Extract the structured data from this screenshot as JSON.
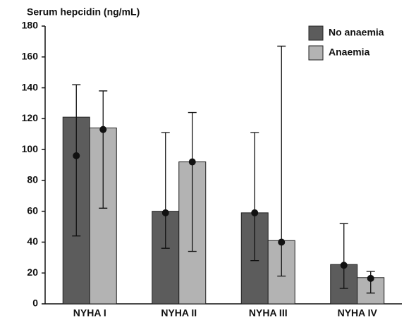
{
  "chart_data": {
    "type": "bar",
    "y_label": "Serum hepcidin (ng/mL)",
    "categories": [
      "NYHA I",
      "NYHA II",
      "NYHA III",
      "NYHA IV"
    ],
    "series": [
      {
        "name": "No anaemia",
        "color": "#5c5c5c",
        "values": [
          121,
          60,
          59,
          25.5
        ],
        "points": [
          96,
          59,
          59,
          25
        ],
        "lower": [
          44,
          36,
          28,
          10
        ],
        "upper": [
          142,
          111,
          111,
          52
        ]
      },
      {
        "name": "Anaemia",
        "color": "#b3b3b3",
        "values": [
          114,
          92,
          41,
          17
        ],
        "points": [
          113,
          92,
          40,
          16.5
        ],
        "lower": [
          62,
          34,
          18,
          7
        ],
        "upper": [
          138,
          124,
          167,
          21
        ]
      }
    ],
    "ylim": [
      0,
      180
    ],
    "yticks": [
      0,
      20,
      40,
      60,
      80,
      100,
      120,
      140,
      160,
      180
    ],
    "legend": "top-right"
  }
}
